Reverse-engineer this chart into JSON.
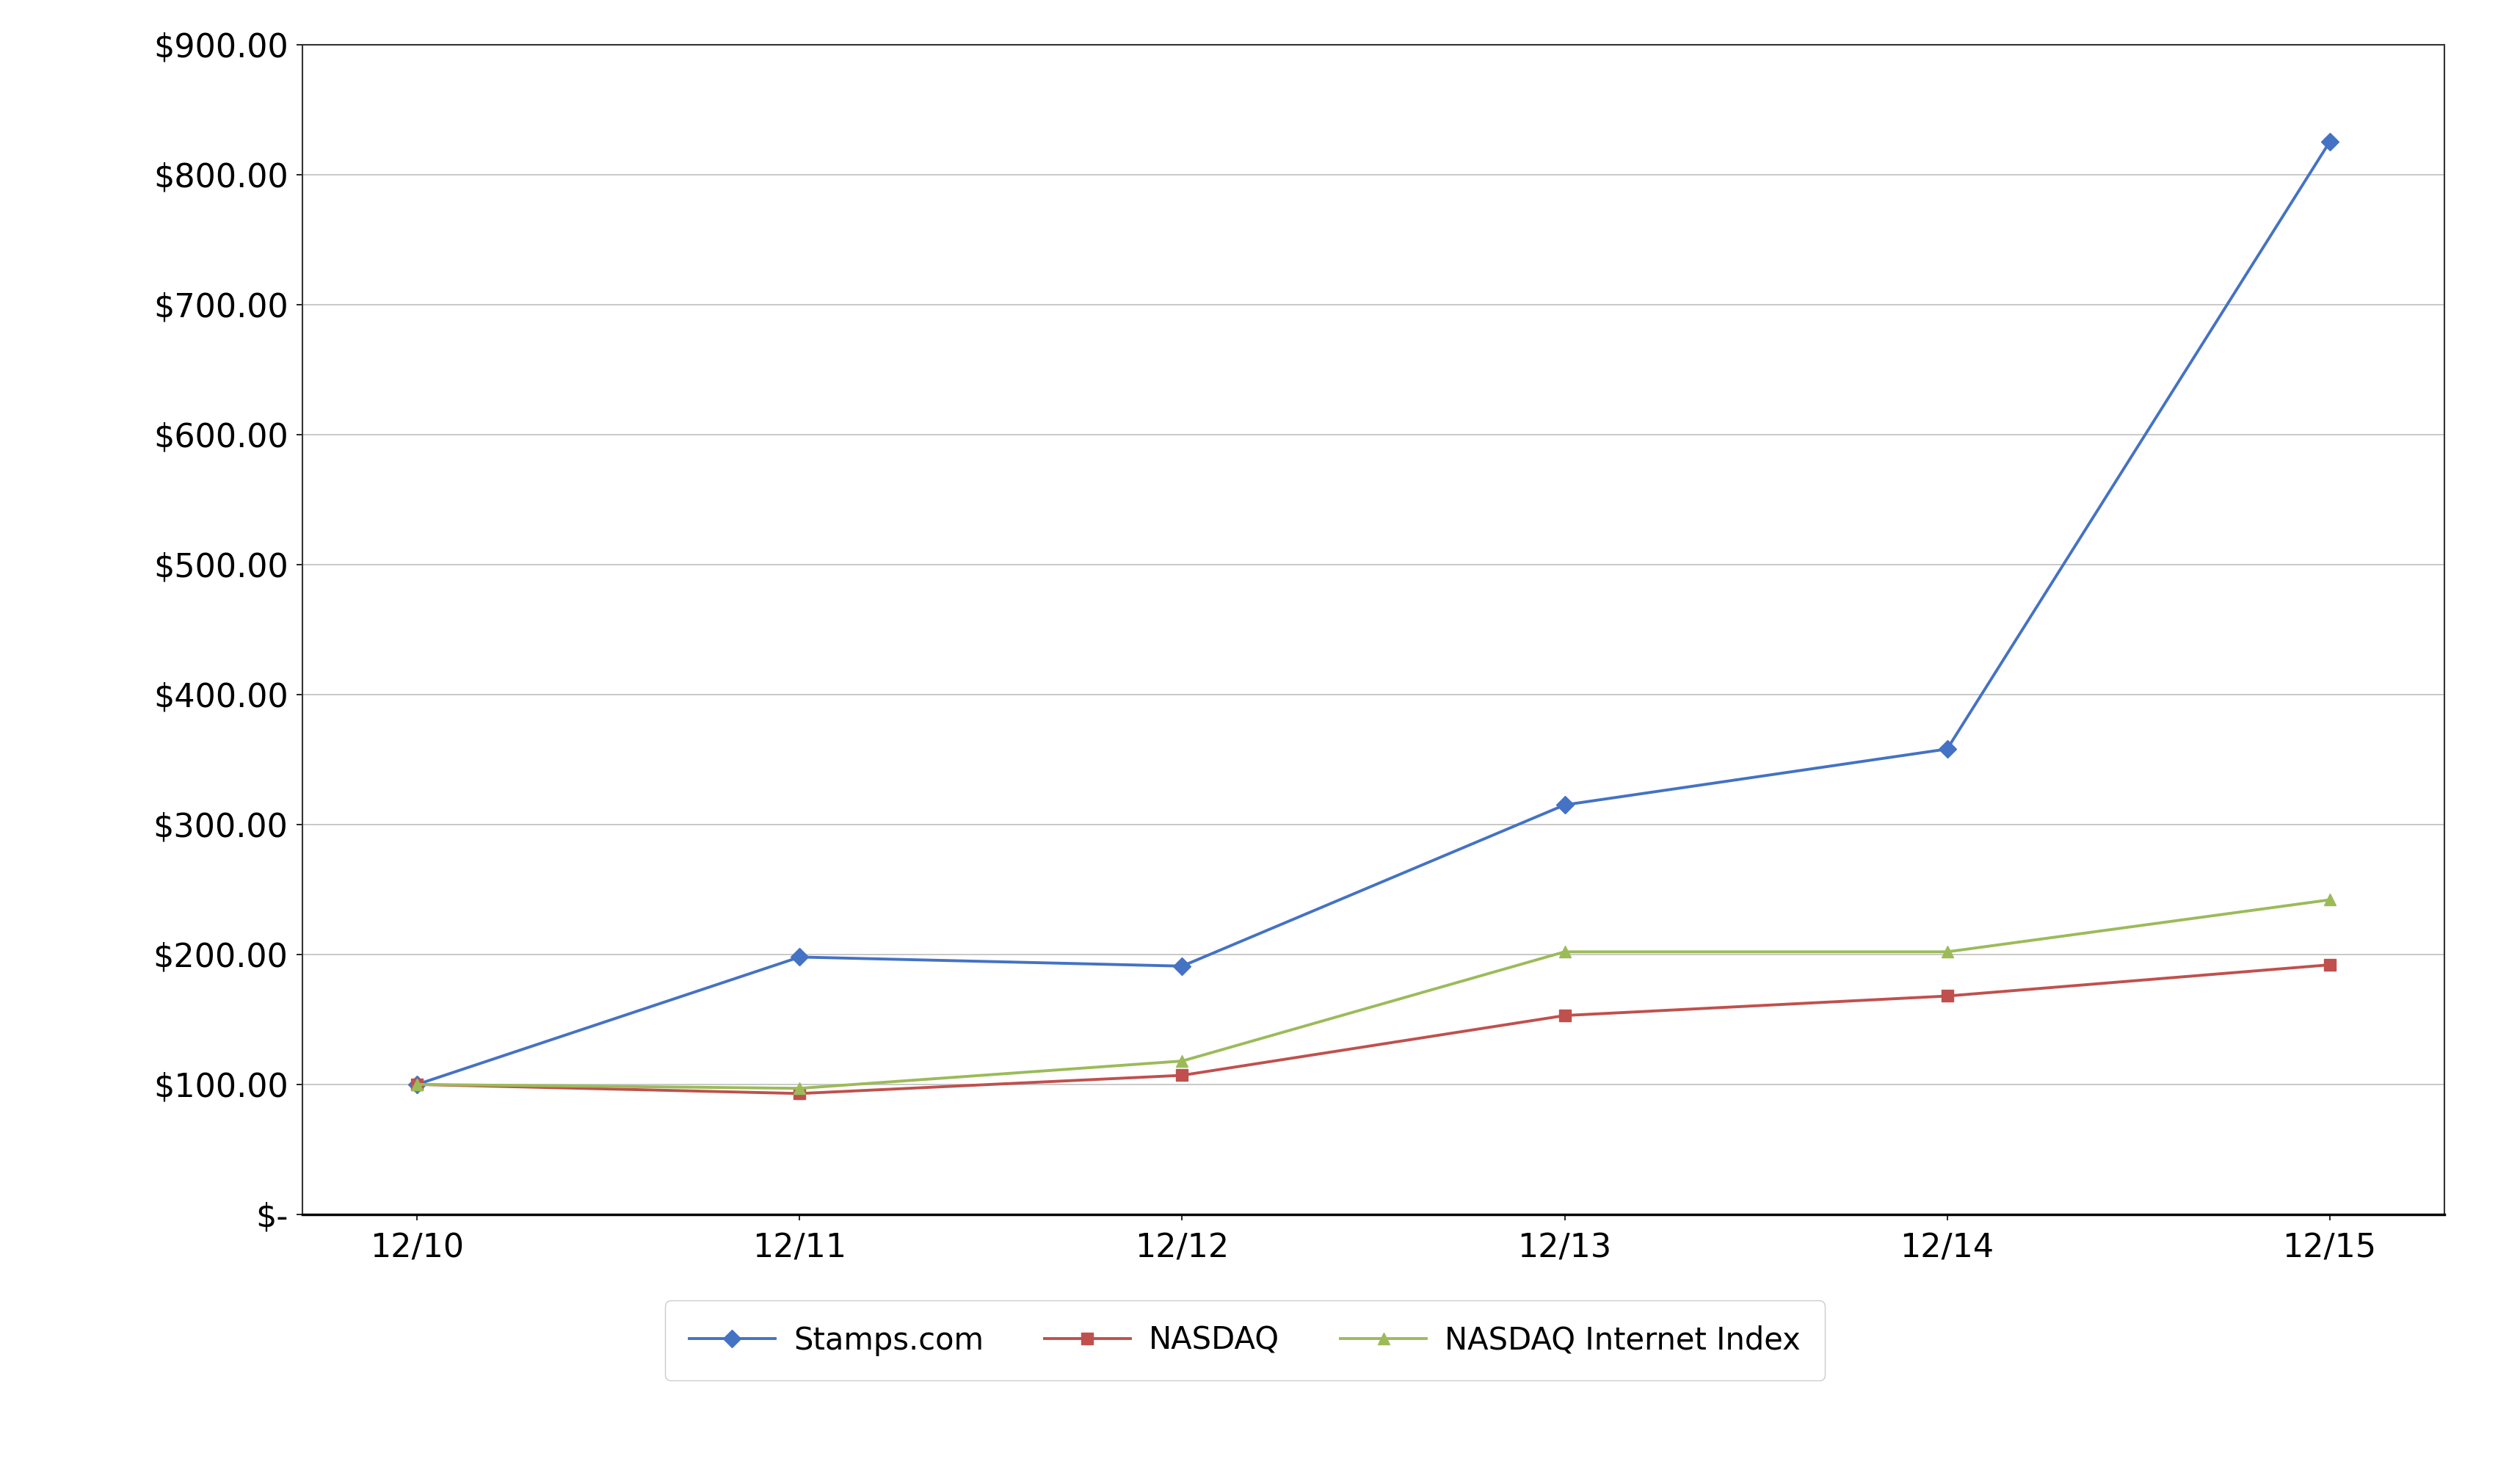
{
  "x_labels": [
    "12/10",
    "12/11",
    "12/12",
    "12/13",
    "12/14",
    "12/15"
  ],
  "stamps": [
    100.0,
    198.0,
    191.0,
    315.0,
    358.0,
    825.0
  ],
  "nasdaq": [
    100.0,
    93.0,
    107.0,
    153.0,
    168.0,
    192.0
  ],
  "nasdaq_internet": [
    100.0,
    97.0,
    118.0,
    202.0,
    202.0,
    242.0
  ],
  "stamps_color": "#4472C4",
  "nasdaq_color": "#C0504D",
  "nasdaq_internet_color": "#9BBB59",
  "ylim_min": 0,
  "ylim_max": 900,
  "ytick_step": 100,
  "legend_labels": [
    "Stamps.com",
    "NASDAQ",
    "NASDAQ Internet Index"
  ],
  "background_color": "#FFFFFF",
  "plot_area_color": "#FFFFFF",
  "grid_color": "#BFBFBF",
  "line_width": 2.8,
  "marker_size": 12,
  "font_size_ticks": 32,
  "font_size_legend": 30
}
